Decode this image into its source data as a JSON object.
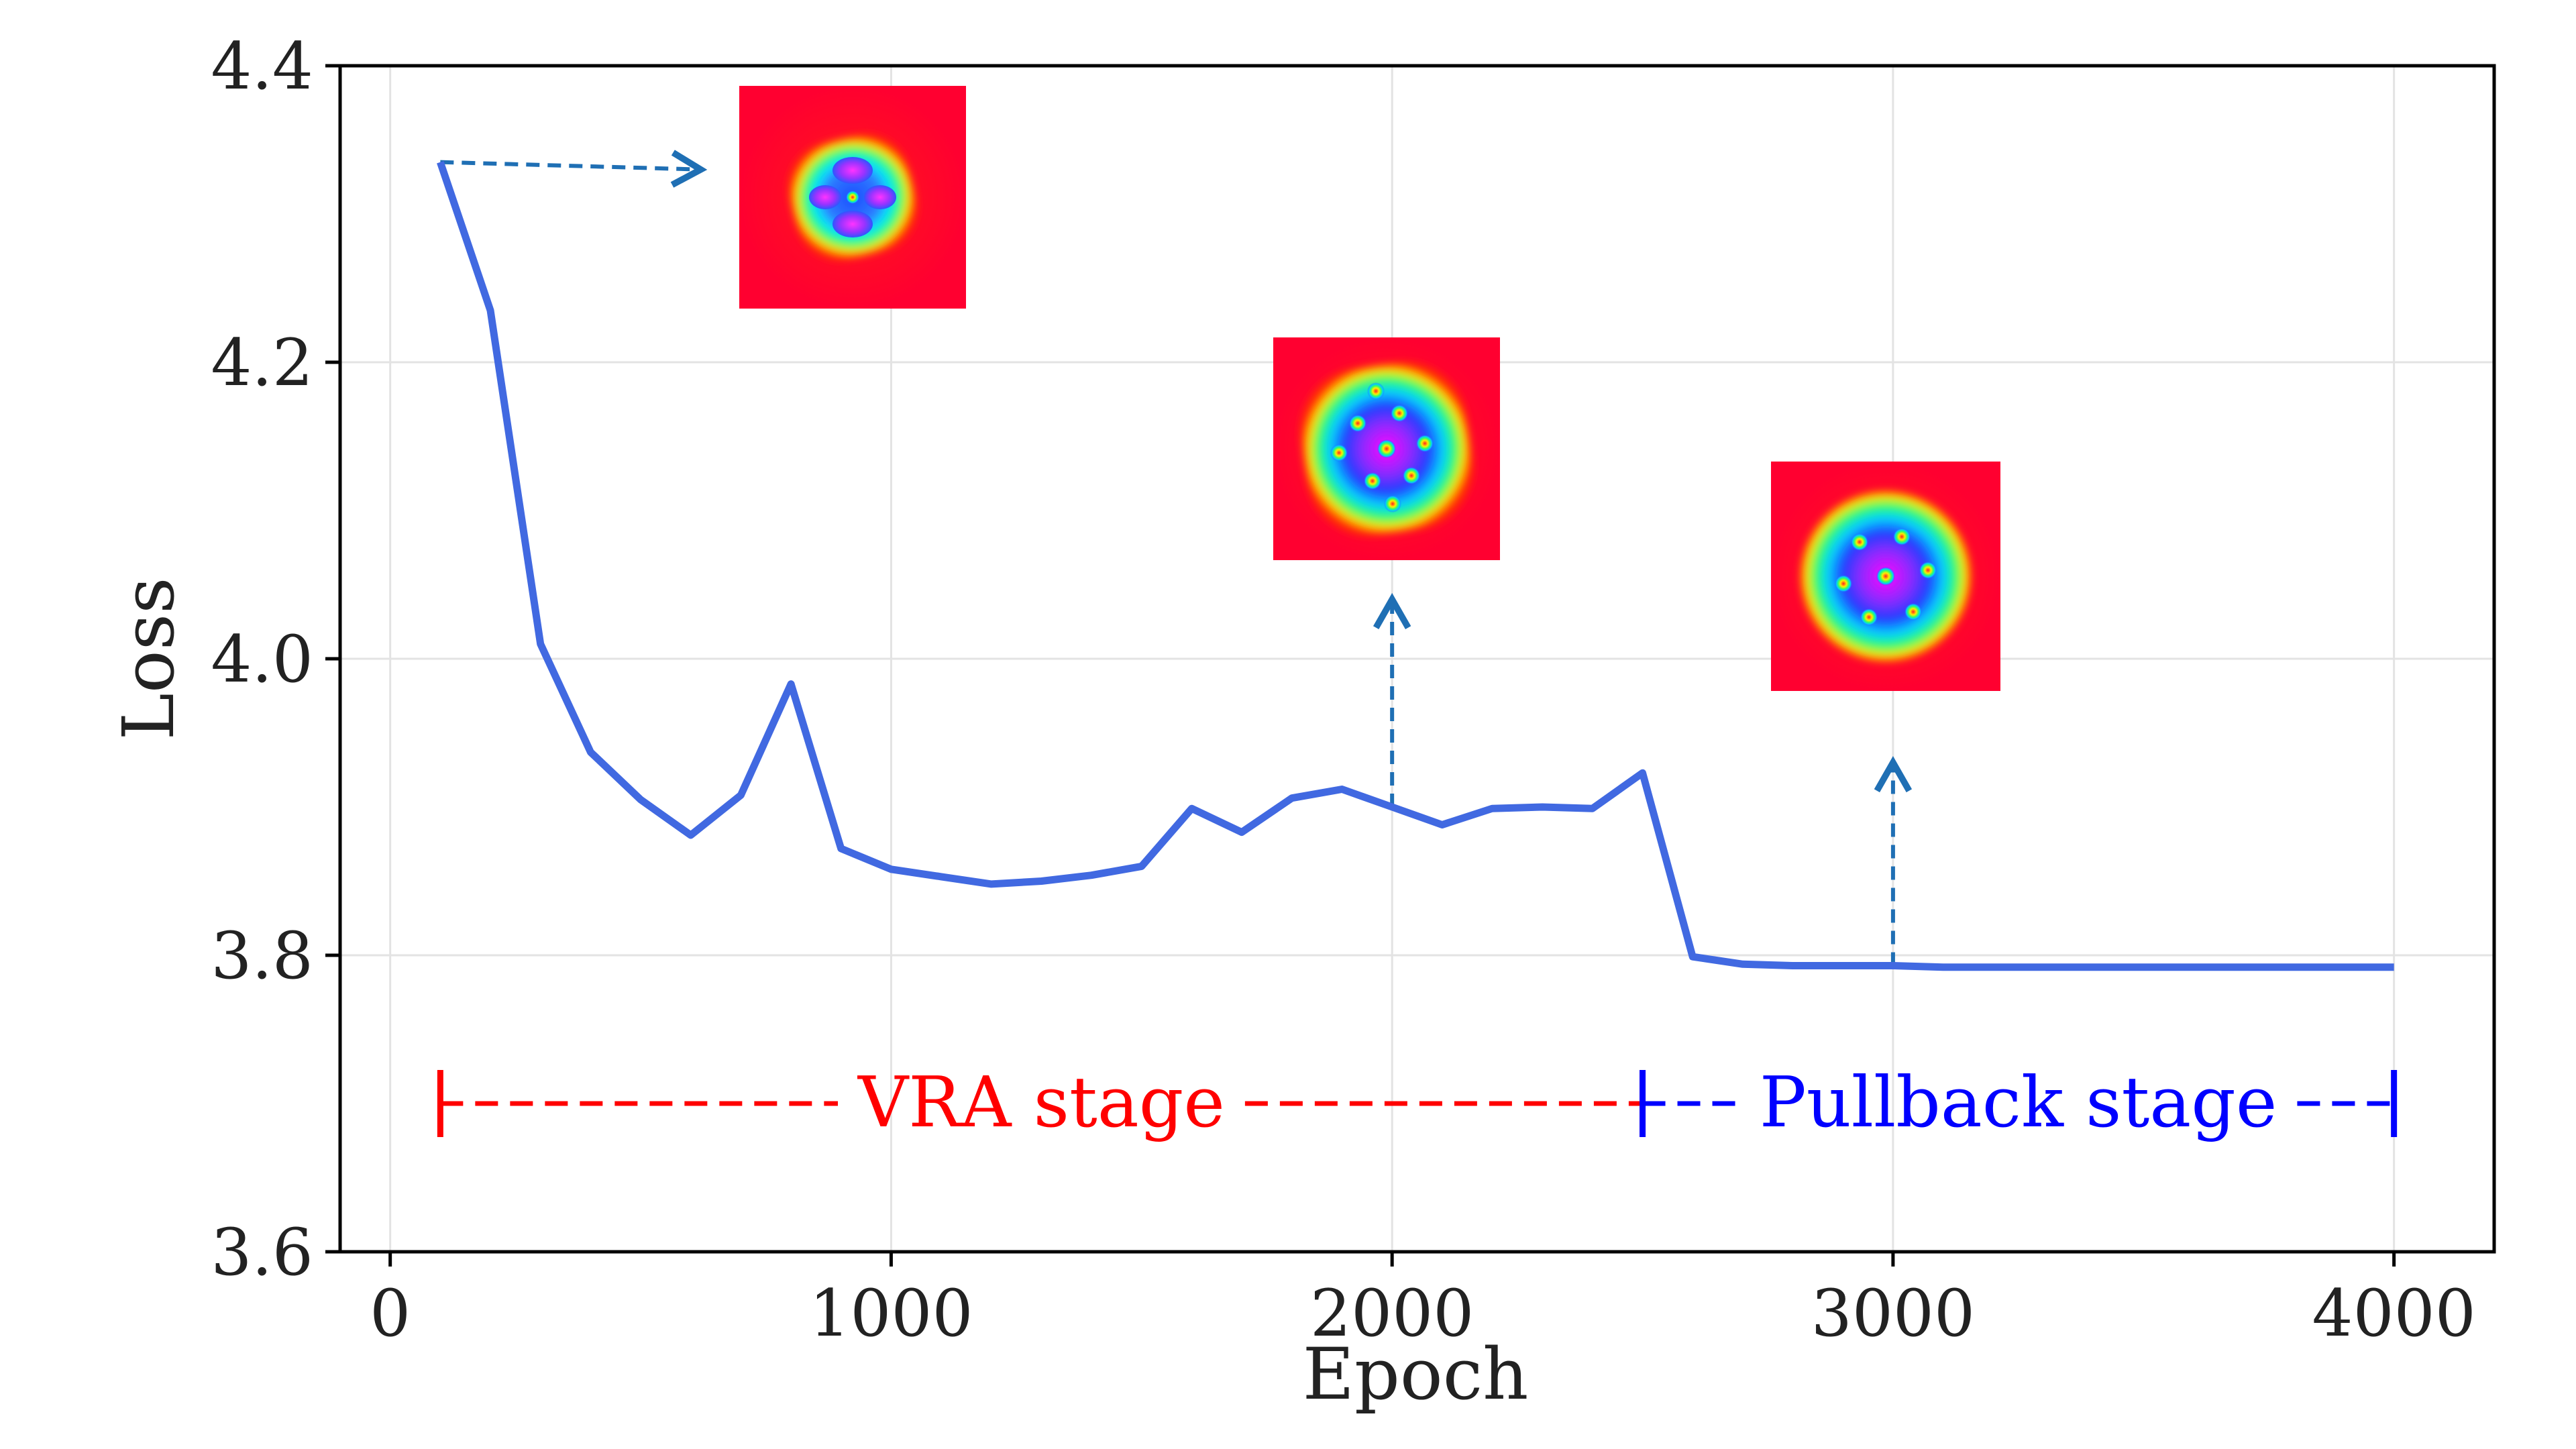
{
  "chart_data": {
    "type": "line",
    "title": "",
    "xlabel": "Epoch",
    "ylabel": "Loss",
    "xlim": [
      -100,
      4200
    ],
    "ylim": [
      3.6,
      4.4
    ],
    "xticks": [
      0,
      1000,
      2000,
      3000,
      4000
    ],
    "xtick_labels": [
      "0",
      "1000",
      "2000",
      "3000",
      "4000"
    ],
    "yticks": [
      3.6,
      3.8,
      4.0,
      4.2,
      4.4
    ],
    "ytick_labels": [
      "3.6",
      "3.8",
      "4.0",
      "4.2",
      "4.4"
    ],
    "grid": true,
    "series": [
      {
        "name": "Loss",
        "color": "#4169e1",
        "x": [
          100,
          200,
          300,
          400,
          500,
          600,
          700,
          800,
          900,
          1000,
          1100,
          1200,
          1300,
          1400,
          1500,
          1600,
          1700,
          1800,
          1900,
          2000,
          2100,
          2200,
          2300,
          2400,
          2500,
          2600,
          2700,
          2800,
          2900,
          3000,
          3100,
          3200,
          3300,
          3400,
          3500,
          3600,
          3700,
          3800,
          3900,
          4000
        ],
        "y": [
          4.335,
          4.235,
          4.01,
          3.937,
          3.905,
          3.881,
          3.908,
          3.983,
          3.872,
          3.858,
          3.853,
          3.848,
          3.85,
          3.854,
          3.86,
          3.899,
          3.883,
          3.906,
          3.912,
          3.9,
          3.888,
          3.899,
          3.9,
          3.899,
          3.923,
          3.799,
          3.794,
          3.793,
          3.793,
          3.793,
          3.792,
          3.792,
          3.792,
          3.792,
          3.792,
          3.792,
          3.792,
          3.792,
          3.792,
          3.792
        ]
      }
    ],
    "stages": [
      {
        "label": "VRA stage",
        "start": 100,
        "end": 2500,
        "y": 3.7,
        "color": "#ff0000"
      },
      {
        "label": "Pullback stage",
        "start": 2500,
        "end": 4000,
        "y": 3.7,
        "color": "#0000ff"
      }
    ],
    "annotations": [
      {
        "description": "snapshot-early",
        "from": [
          100,
          4.335
        ],
        "to": [
          620,
          4.33
        ]
      },
      {
        "description": "snapshot-mid",
        "from": [
          2000,
          3.9
        ],
        "to": [
          2000,
          4.04
        ]
      },
      {
        "description": "snapshot-late",
        "from": [
          3000,
          3.793
        ],
        "to": [
          3000,
          3.93
        ]
      }
    ],
    "arrow_color": "#1f6fb4"
  }
}
